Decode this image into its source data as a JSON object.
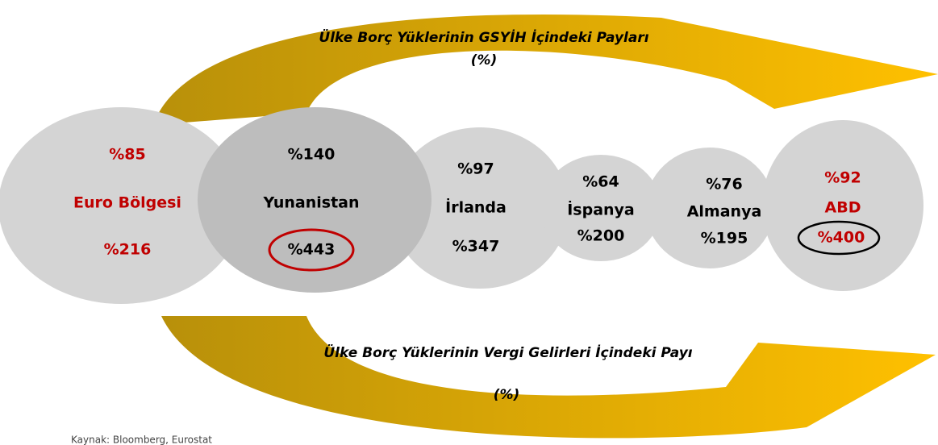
{
  "title_top": "Ülke Borç Yüklerinin GSYİH İçindeki Payları",
  "unit_top": "(%)",
  "title_bottom": "Ülke Borç Yüklerinin Vergi Gelirleri İçindeki Payı",
  "unit_bottom": "(%)",
  "nodes": [
    {
      "gdp": "%85",
      "name": "Euro Bölgesi",
      "tax": "%216"
    },
    {
      "gdp": "%140",
      "name": "Yunanistan",
      "tax": "%443"
    },
    {
      "gdp": "%97",
      "name": "İrlanda",
      "tax": "%347"
    },
    {
      "gdp": "%64",
      "name": "İspanya",
      "tax": "%200"
    },
    {
      "gdp": "%76",
      "name": "Almanya",
      "tax": "%195"
    },
    {
      "gdp": "%92",
      "name": "ABD",
      "tax": "%400"
    }
  ],
  "source": "Kaynak: Bloomberg, Eurostat"
}
